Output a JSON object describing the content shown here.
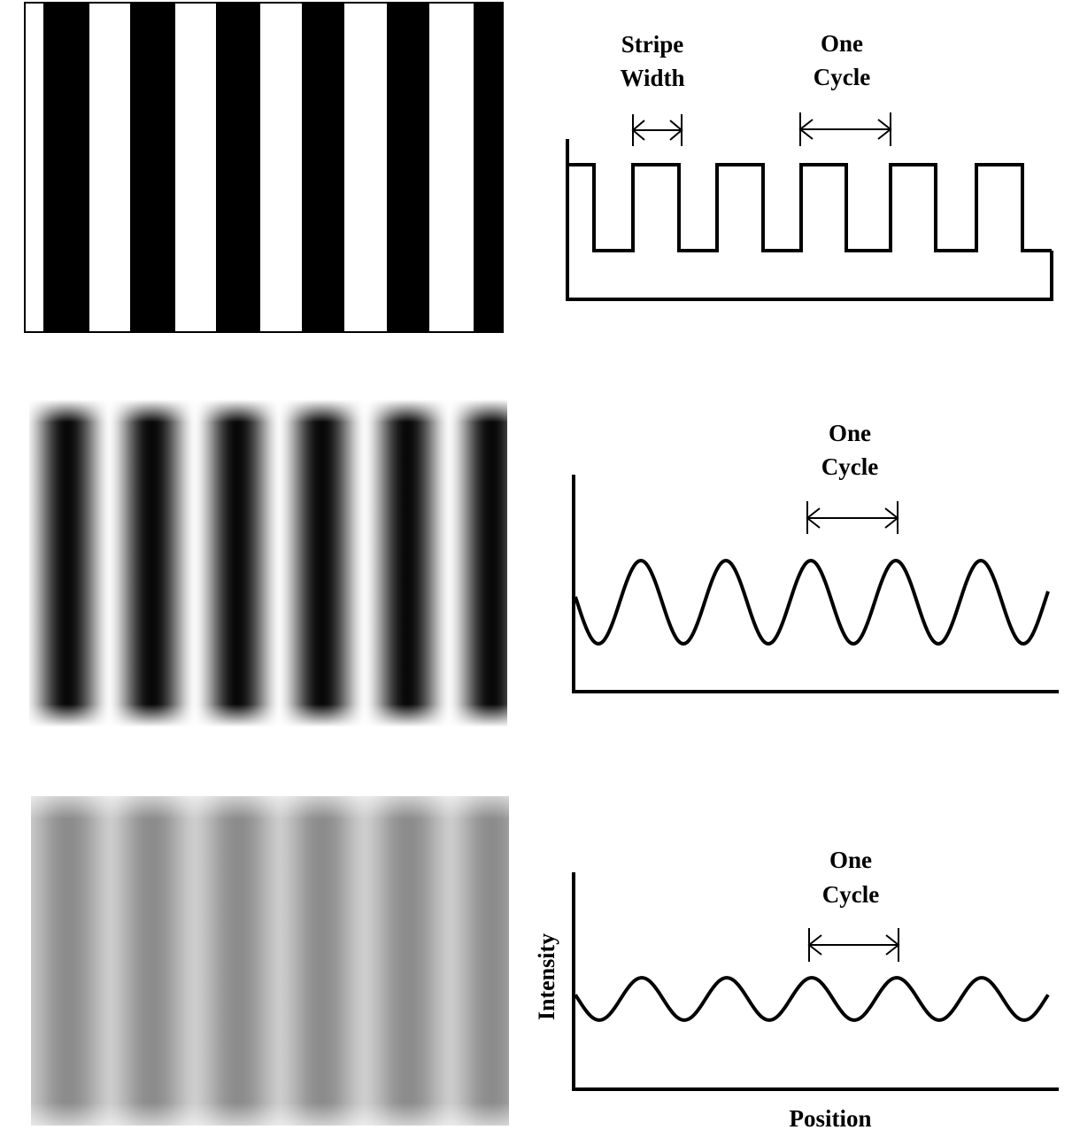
{
  "labels": {
    "stripe": "Stripe",
    "width": "Width",
    "one": "One",
    "cycle": "Cycle",
    "x_axis": "Position",
    "y_axis": "Intensity"
  },
  "colors": {
    "ink": "#000000",
    "paper": "#ffffff",
    "mid_gray": "#9a9a9a",
    "light_gray": "#c8c8c8"
  },
  "rows": [
    {
      "name": "square-wave",
      "grating": "sharp stripes",
      "profile": "square",
      "contrast": 1.0,
      "cycles": 5.5
    },
    {
      "name": "high-contrast-sine",
      "grating": "blurred stripes",
      "profile": "sine",
      "contrast": 1.0,
      "cycles": 5.5
    },
    {
      "name": "low-contrast-sine",
      "grating": "faint blurred stripes",
      "profile": "sine",
      "contrast": 0.3,
      "cycles": 5.5
    }
  ],
  "chart_data": {
    "type": "line",
    "xlabel": "Position",
    "ylabel": "Intensity",
    "panels": [
      "square",
      "sine high contrast",
      "sine low contrast"
    ]
  }
}
